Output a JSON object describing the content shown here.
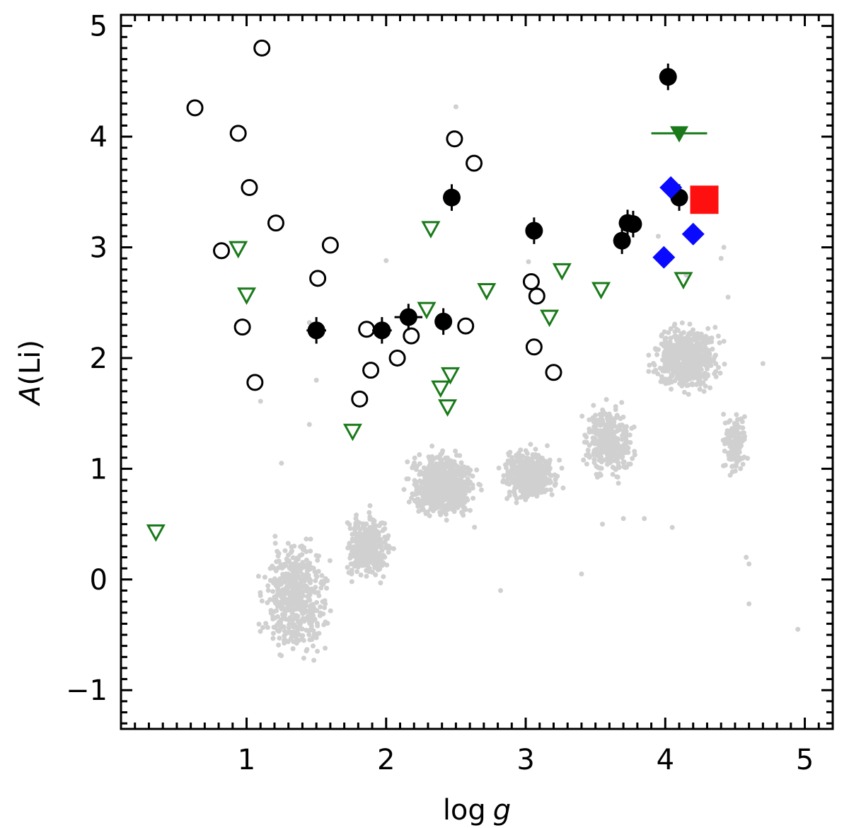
{
  "chart_data": {
    "type": "scatter",
    "title": "",
    "xlabel": "log g",
    "ylabel": "A(Li)",
    "xlabel_parts": {
      "plain": "log",
      "italic": "g"
    },
    "ylabel_parts": {
      "italic": "A",
      "plain": "(Li)"
    },
    "xlim": [
      0.1,
      5.2
    ],
    "ylim": [
      -1.35,
      5.1
    ],
    "xticks": [
      1,
      2,
      3,
      4,
      5
    ],
    "xtick_labels": [
      "1",
      "2",
      "3",
      "4",
      "5"
    ],
    "yticks": [
      -1,
      0,
      1,
      2,
      3,
      4,
      5
    ],
    "ytick_labels": [
      "−1",
      "0",
      "1",
      "2",
      "3",
      "4",
      "5"
    ],
    "grid": false,
    "legend": "none",
    "colors": {
      "background": "#d0d0d0",
      "filled_circles": "#000000",
      "open_circles": "#000000",
      "upper_limits": "#1a7a1a",
      "blue_diamonds": "#0a0aff",
      "red_square": "#ff1010"
    },
    "series": [
      {
        "name": "background field stars",
        "marker": "small-dot",
        "clusters": [
          {
            "x": [
              0.95,
              1.75
            ],
            "y": [
              -1.05,
              0.7
            ],
            "n": 500
          },
          {
            "x": [
              1.6,
              2.15
            ],
            "y": [
              -0.2,
              0.8
            ],
            "n": 350
          },
          {
            "x": [
              2.0,
              2.8
            ],
            "y": [
              0.35,
              1.35
            ],
            "n": 750
          },
          {
            "x": [
              2.7,
              3.35
            ],
            "y": [
              0.55,
              1.35
            ],
            "n": 450
          },
          {
            "x": [
              3.3,
              3.9
            ],
            "y": [
              0.7,
              1.8
            ],
            "n": 350
          },
          {
            "x": [
              3.75,
              4.55
            ],
            "y": [
              1.5,
              2.5
            ],
            "n": 550
          },
          {
            "x": [
              4.35,
              4.65
            ],
            "y": [
              0.75,
              1.7
            ],
            "n": 120
          }
        ],
        "outliers": [
          {
            "x": 2.5,
            "y": 4.27
          },
          {
            "x": 1.5,
            "y": 1.8
          },
          {
            "x": 1.25,
            "y": 1.05
          },
          {
            "x": 1.45,
            "y": 1.4
          },
          {
            "x": 3.02,
            "y": 2.87
          },
          {
            "x": 2.0,
            "y": 2.88
          },
          {
            "x": 2.82,
            "y": -0.1
          },
          {
            "x": 3.4,
            "y": 0.05
          },
          {
            "x": 4.95,
            "y": -0.45
          },
          {
            "x": 4.6,
            "y": -0.22
          },
          {
            "x": 4.05,
            "y": 0.47
          },
          {
            "x": 4.6,
            "y": 0.14
          },
          {
            "x": 4.58,
            "y": 0.2
          },
          {
            "x": 1.1,
            "y": 1.61
          },
          {
            "x": 1.45,
            "y": 2.32
          },
          {
            "x": 3.85,
            "y": 0.55
          },
          {
            "x": 3.7,
            "y": 0.55
          },
          {
            "x": 3.55,
            "y": 0.5
          },
          {
            "x": 4.15,
            "y": 2.75
          },
          {
            "x": 4.45,
            "y": 2.55
          },
          {
            "x": 4.7,
            "y": 1.95
          },
          {
            "x": 4.4,
            "y": 2.9
          },
          {
            "x": 3.95,
            "y": 3.1
          },
          {
            "x": 4.42,
            "y": 3.0
          }
        ]
      },
      {
        "name": "filled black circles",
        "marker": "filled-circle",
        "points": [
          {
            "x": 4.02,
            "y": 4.54,
            "yerr": 0.12
          },
          {
            "x": 2.47,
            "y": 3.45,
            "yerr": 0.12
          },
          {
            "x": 3.06,
            "y": 3.15,
            "yerr": 0.12
          },
          {
            "x": 3.73,
            "y": 3.22,
            "yerr": 0.12
          },
          {
            "x": 3.77,
            "y": 3.21,
            "yerr": 0.12
          },
          {
            "x": 3.69,
            "y": 3.06,
            "yerr": 0.12
          },
          {
            "x": 4.1,
            "y": 3.45,
            "yerr": 0.12
          },
          {
            "x": 1.5,
            "y": 2.25,
            "yerr": 0.12,
            "xerr": 0.07
          },
          {
            "x": 1.97,
            "y": 2.25,
            "yerr": 0.12,
            "xerr": 0.07
          },
          {
            "x": 2.16,
            "y": 2.37,
            "yerr": 0.12,
            "xerr": 0.1
          },
          {
            "x": 2.41,
            "y": 2.33,
            "yerr": 0.12
          }
        ]
      },
      {
        "name": "open circles",
        "marker": "open-circle",
        "points": [
          {
            "x": 1.11,
            "y": 4.8
          },
          {
            "x": 0.63,
            "y": 4.26
          },
          {
            "x": 0.94,
            "y": 4.03
          },
          {
            "x": 1.02,
            "y": 3.54
          },
          {
            "x": 1.21,
            "y": 3.22
          },
          {
            "x": 0.82,
            "y": 2.97
          },
          {
            "x": 0.97,
            "y": 2.28
          },
          {
            "x": 1.06,
            "y": 1.78
          },
          {
            "x": 1.51,
            "y": 2.72
          },
          {
            "x": 1.6,
            "y": 3.02
          },
          {
            "x": 2.49,
            "y": 3.98
          },
          {
            "x": 2.63,
            "y": 3.76
          },
          {
            "x": 1.86,
            "y": 2.26
          },
          {
            "x": 1.89,
            "y": 1.89
          },
          {
            "x": 2.08,
            "y": 2.0
          },
          {
            "x": 2.18,
            "y": 2.2
          },
          {
            "x": 1.81,
            "y": 1.63
          },
          {
            "x": 2.57,
            "y": 2.29
          },
          {
            "x": 3.04,
            "y": 2.69
          },
          {
            "x": 3.08,
            "y": 2.56
          },
          {
            "x": 3.06,
            "y": 2.1
          },
          {
            "x": 3.2,
            "y": 1.87
          }
        ]
      },
      {
        "name": "upper limits (open)",
        "marker": "open-down-triangle",
        "points": [
          {
            "x": 0.35,
            "y": 0.43
          },
          {
            "x": 0.94,
            "y": 2.99
          },
          {
            "x": 1.0,
            "y": 2.57
          },
          {
            "x": 1.76,
            "y": 1.34
          },
          {
            "x": 2.32,
            "y": 3.17
          },
          {
            "x": 2.29,
            "y": 2.44
          },
          {
            "x": 2.39,
            "y": 1.73
          },
          {
            "x": 2.46,
            "y": 1.85
          },
          {
            "x": 2.44,
            "y": 1.56
          },
          {
            "x": 2.72,
            "y": 2.61
          },
          {
            "x": 3.17,
            "y": 2.37
          },
          {
            "x": 3.26,
            "y": 2.79
          },
          {
            "x": 3.54,
            "y": 2.62
          },
          {
            "x": 4.13,
            "y": 2.71
          }
        ]
      },
      {
        "name": "upper limit (filled)",
        "marker": "filled-down-triangle",
        "points": [
          {
            "x": 4.1,
            "y": 4.03,
            "xerr": 0.2
          }
        ]
      },
      {
        "name": "blue diamonds",
        "marker": "diamond",
        "points": [
          {
            "x": 4.04,
            "y": 3.54
          },
          {
            "x": 4.2,
            "y": 3.12
          },
          {
            "x": 3.99,
            "y": 2.91
          }
        ]
      },
      {
        "name": "red square",
        "marker": "square",
        "points": [
          {
            "x": 4.28,
            "y": 3.43,
            "xerr": 0.08
          }
        ]
      }
    ]
  }
}
